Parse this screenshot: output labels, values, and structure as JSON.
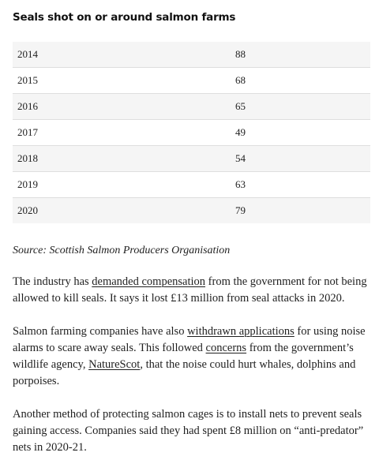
{
  "table": {
    "title": "Seals shot on or around salmon farms",
    "rows": [
      {
        "year": "2014",
        "count": "88"
      },
      {
        "year": "2015",
        "count": "68"
      },
      {
        "year": "2016",
        "count": "65"
      },
      {
        "year": "2017",
        "count": "49"
      },
      {
        "year": "2018",
        "count": "54"
      },
      {
        "year": "2019",
        "count": "63"
      },
      {
        "year": "2020",
        "count": "79"
      }
    ],
    "source": "Source: Scottish Salmon Producers Organisation"
  },
  "paragraphs": {
    "p1": {
      "text_before": "The industry has ",
      "link": "demanded compensation",
      "text_after": " from the government for not being allowed to kill seals. It says it lost £13 million from seal attacks in 2020."
    },
    "p2": {
      "text_before": "Salmon farming companies have also ",
      "link1": "withdrawn applications",
      "text_mid1": " for using noise alarms to scare away seals. This followed ",
      "link2": "concerns",
      "text_mid2": " from the government’s wildlife agency, ",
      "link3": "NatureScot",
      "text_after": ", that the noise could hurt whales, dolphins and porpoises."
    },
    "p3": {
      "text": "Another method of protecting salmon cages is to install nets to prevent seals gaining access. Companies said they had spent £8 million on “anti-predator” nets in 2020-21."
    }
  }
}
